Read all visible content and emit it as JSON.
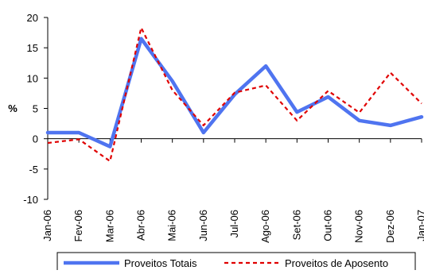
{
  "chart_data": {
    "type": "line",
    "title": "",
    "xlabel": "",
    "ylabel": "%",
    "ylim": [
      -10,
      20
    ],
    "yticks": [
      -10,
      -5,
      0,
      5,
      10,
      15,
      20
    ],
    "grid": false,
    "legend_position": "bottom",
    "categories": [
      "Jan-06",
      "Fev-06",
      "Mar-06",
      "Abr-06",
      "Mai-06",
      "Jun-06",
      "Jul-06",
      "Ago-06",
      "Set-06",
      "Out-06",
      "Nov-06",
      "Dez-06",
      "Jan-07"
    ],
    "series": [
      {
        "name": "Proveitos Totais",
        "color": "#4f74f0",
        "style": "solid",
        "values": [
          1.0,
          1.0,
          -1.3,
          16.5,
          9.5,
          1.0,
          7.3,
          12.0,
          4.4,
          6.9,
          3.0,
          2.2,
          3.6
        ]
      },
      {
        "name": "Proveitos de Aposento",
        "color": "#e00000",
        "style": "dashed",
        "values": [
          -0.7,
          -0.1,
          -3.7,
          18.3,
          8.0,
          2.2,
          7.6,
          8.8,
          3.0,
          7.9,
          4.3,
          10.9,
          5.8
        ]
      }
    ]
  }
}
